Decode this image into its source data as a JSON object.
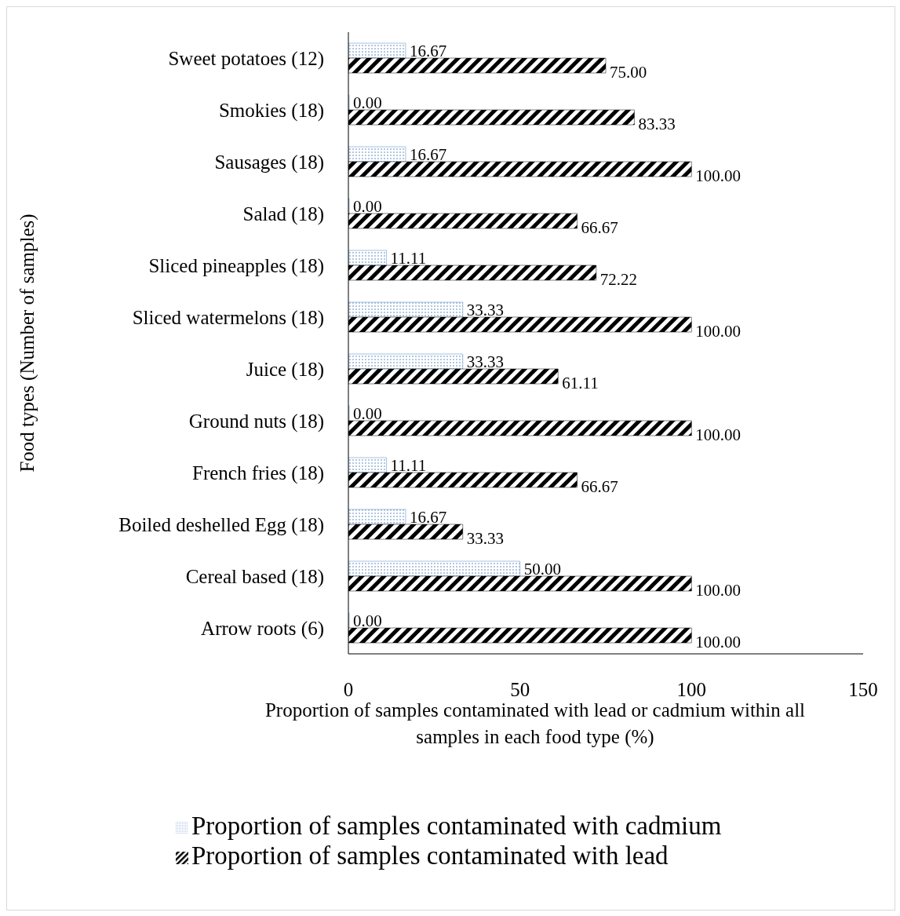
{
  "chart_data": {
    "type": "bar",
    "orientation": "horizontal",
    "ylabel": "Food types (Number of samples)",
    "xlabel": "Proportion of samples contaminated with lead or cadmium within all samples in each food type (%)",
    "categories": [
      "Sweet potatoes (12)",
      "Smokies (18)",
      "Sausages (18)",
      "Salad (18)",
      "Sliced pineapples (18)",
      "Sliced watermelons (18)",
      "Juice (18)",
      "Ground nuts (18)",
      "French fries (18)",
      "Boiled deshelled Egg (18)",
      "Cereal based (18)",
      "Arrow roots (6)"
    ],
    "series": [
      {
        "name": "Proportion of samples contaminated with cadmium",
        "color": "#4f81bd",
        "values": [
          16.67,
          0,
          16.67,
          0,
          11.11,
          33.33,
          33.33,
          0,
          11.11,
          16.67,
          50,
          0
        ],
        "value_labels": [
          "16.67",
          "0.00",
          "16.67",
          "0.00",
          "11.11",
          "33.33",
          "33.33",
          "0.00",
          "11.11",
          "16.67",
          "50.00",
          "0.00"
        ]
      },
      {
        "name": "Proportion of samples contaminated with lead",
        "color": "#000000",
        "values": [
          75,
          83.33,
          100,
          66.67,
          72.22,
          100,
          61.11,
          100,
          66.67,
          33.33,
          100,
          100
        ],
        "value_labels": [
          "75.00",
          "83.33",
          "100.00",
          "66.67",
          "72.22",
          "100.00",
          "61.11",
          "100.00",
          "66.67",
          "33.33",
          "100.00",
          "100.00"
        ]
      }
    ],
    "xlim": [
      0,
      150
    ],
    "xticks": [
      0,
      50,
      100,
      150
    ],
    "grid": false,
    "legend": "bottom"
  }
}
